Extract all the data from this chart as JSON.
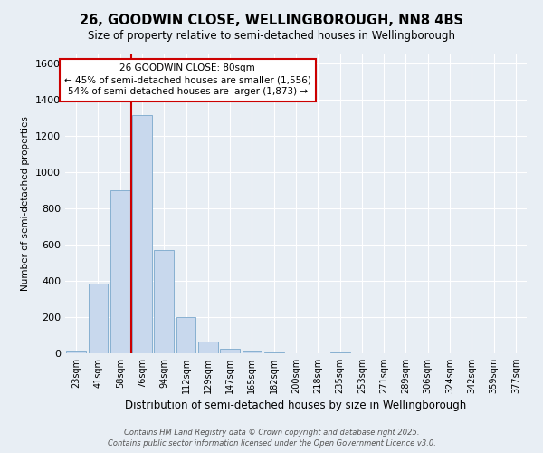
{
  "title": "26, GOODWIN CLOSE, WELLINGBOROUGH, NN8 4BS",
  "subtitle": "Size of property relative to semi-detached houses in Wellingborough",
  "xlabel": "Distribution of semi-detached houses by size in Wellingborough",
  "ylabel": "Number of semi-detached properties",
  "categories": [
    "23sqm",
    "41sqm",
    "58sqm",
    "76sqm",
    "94sqm",
    "112sqm",
    "129sqm",
    "147sqm",
    "165sqm",
    "182sqm",
    "200sqm",
    "218sqm",
    "235sqm",
    "253sqm",
    "271sqm",
    "289sqm",
    "306sqm",
    "324sqm",
    "342sqm",
    "359sqm",
    "377sqm"
  ],
  "values": [
    15,
    385,
    900,
    1315,
    570,
    200,
    65,
    25,
    15,
    5,
    0,
    0,
    5,
    0,
    0,
    0,
    0,
    0,
    0,
    0,
    0
  ],
  "bar_color": "#c8d8ed",
  "bar_edge_color": "#7aa8cc",
  "vline_x_index": 3,
  "vline_color": "#cc0000",
  "annotation_text_line1": "26 GOODWIN CLOSE: 80sqm",
  "annotation_text_line2": "← 45% of semi-detached houses are smaller (1,556)",
  "annotation_text_line3": "54% of semi-detached houses are larger (1,873) →",
  "annotation_box_color": "#ffffff",
  "annotation_box_edge": "#cc0000",
  "ylim": [
    0,
    1650
  ],
  "yticks": [
    0,
    200,
    400,
    600,
    800,
    1000,
    1200,
    1400,
    1600
  ],
  "background_color": "#e8eef4",
  "grid_color": "#ffffff",
  "footer_line1": "Contains HM Land Registry data © Crown copyright and database right 2025.",
  "footer_line2": "Contains public sector information licensed under the Open Government Licence v3.0."
}
